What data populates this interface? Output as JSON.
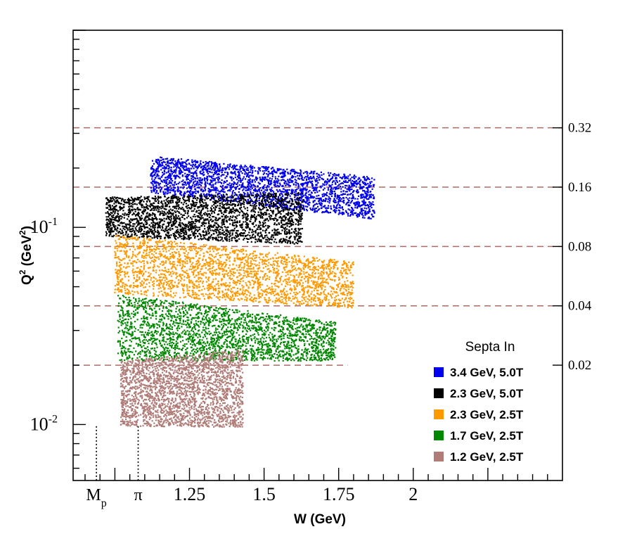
{
  "chart_data": {
    "type": "scatter",
    "title": "",
    "xlabel": "W (GeV)",
    "ylabel_main": "Q",
    "ylabel_sup": "2",
    "ylabel_unit": " (GeV",
    "ylabel_unit_sup": "2",
    "ylabel_close": ")",
    "xlim": [
      0.86,
      2.5
    ],
    "ylim": [
      0.0052,
      1.0
    ],
    "yscale": "log",
    "grid": false,
    "x_ticks": [
      {
        "value": 1.25,
        "label": "1.25"
      },
      {
        "value": 1.5,
        "label": "1.5"
      },
      {
        "value": 1.75,
        "label": "1.75"
      },
      {
        "value": 2.0,
        "label": "2"
      }
    ],
    "x_markers": [
      {
        "value": 0.938,
        "label": "M",
        "sub": "p"
      },
      {
        "value": 1.078,
        "label": "π"
      }
    ],
    "y_tick_labels": [
      {
        "value": 0.1,
        "mantissa": "10",
        "exponent": "-1"
      },
      {
        "value": 0.01,
        "mantissa": "10",
        "exponent": "-2"
      }
    ],
    "right_axis_labels": [
      {
        "value": 0.32,
        "label": "0.32"
      },
      {
        "value": 0.16,
        "label": "0.16"
      },
      {
        "value": 0.08,
        "label": "0.08"
      },
      {
        "value": 0.04,
        "label": "0.04"
      },
      {
        "value": 0.02,
        "label": "0.02"
      }
    ],
    "reference_lines": [
      {
        "y": 0.32,
        "x_from": 0.86,
        "x_to": 2.5
      },
      {
        "y": 0.16,
        "x_from": 0.86,
        "x_to": 2.5
      },
      {
        "y": 0.08,
        "x_from": 0.86,
        "x_to": 2.5
      },
      {
        "y": 0.04,
        "x_from": 0.86,
        "x_to": 2.5
      },
      {
        "y": 0.02,
        "x_from": 0.86,
        "x_to": 1.78
      }
    ],
    "legend": {
      "title": "Septa In",
      "placement": "bottom-right"
    },
    "series": [
      {
        "name": "3.4 GeV, 5.0T",
        "color": "#0000ee",
        "region": {
          "x_left": 1.12,
          "x_right": 1.87,
          "top_left": 0.23,
          "top_right": 0.18,
          "bot_left": 0.15,
          "bot_right": 0.11
        }
      },
      {
        "name": "2.3 GeV, 5.0T",
        "color": "#000000",
        "region": {
          "x_left": 0.97,
          "x_right": 1.63,
          "top_left": 0.142,
          "top_right": 0.15,
          "bot_left": 0.09,
          "bot_right": 0.082
        }
      },
      {
        "name": "2.3 GeV, 2.5T",
        "color": "#ff9900",
        "region": {
          "x_left": 1.0,
          "x_right": 1.8,
          "top_left": 0.092,
          "top_right": 0.067,
          "bot_left": 0.046,
          "bot_right": 0.039
        }
      },
      {
        "name": "1.7 GeV, 2.5T",
        "color": "#008800",
        "region": {
          "x_left": 1.01,
          "x_right": 1.74,
          "top_left": 0.046,
          "top_right": 0.033,
          "bot_left": 0.021,
          "bot_right": 0.021
        }
      },
      {
        "name": "1.2 GeV, 2.5T",
        "color": "#b07c78",
        "region": {
          "x_left": 1.02,
          "x_right": 1.43,
          "top_left": 0.021,
          "top_right": 0.024,
          "bot_left": 0.0098,
          "bot_right": 0.0097
        }
      }
    ]
  }
}
